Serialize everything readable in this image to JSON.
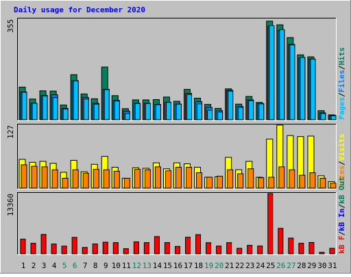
{
  "title": "Daily usage for December 2020",
  "colors": {
    "background": "#c0c0c0",
    "plot_bg": "#c0c0c0",
    "title": "#0000ff",
    "hits": "#00805c",
    "files": "#0080ff",
    "pages": "#00c0ff",
    "visits": "#ffff00",
    "sites": "#ff8000",
    "kbin": "#0000ff",
    "kbout": "#00805c",
    "kbf": "#ff0000",
    "weekday_label": "#000000",
    "weekend_label": "#00805c"
  },
  "chart_data": [
    {
      "type": "bar",
      "name": "hits-files-pages",
      "ymax_label": "355",
      "ylim": [
        0,
        355
      ],
      "legend": [
        {
          "label": "Pages",
          "color": "#00c0ff"
        },
        {
          "label": "Files",
          "color": "#0080ff"
        },
        {
          "label": "Hits",
          "color": "#00805c"
        }
      ],
      "categories": [
        "1",
        "2",
        "3",
        "4",
        "5",
        "6",
        "7",
        "8",
        "9",
        "10",
        "11",
        "12",
        "13",
        "14",
        "15",
        "16",
        "17",
        "18",
        "19",
        "20",
        "21",
        "22",
        "23",
        "24",
        "25",
        "26",
        "27",
        "28",
        "29",
        "30",
        "31"
      ],
      "series": [
        {
          "name": "Hits",
          "values": [
            115,
            73,
            102,
            101,
            52,
            159,
            91,
            74,
            186,
            85,
            39,
            70,
            70,
            71,
            80,
            65,
            107,
            76,
            54,
            40,
            109,
            55,
            82,
            61,
            348,
            335,
            290,
            229,
            222,
            32,
            17
          ]
        },
        {
          "name": "Files",
          "values": [
            98,
            58,
            86,
            88,
            40,
            138,
            79,
            58,
            107,
            68,
            30,
            58,
            58,
            54,
            62,
            55,
            93,
            64,
            43,
            32,
            104,
            47,
            70,
            57,
            330,
            315,
            266,
            217,
            214,
            24,
            15
          ]
        },
        {
          "name": "Pages",
          "values": [
            97,
            58,
            84,
            78,
            38,
            137,
            73,
            55,
            106,
            66,
            22,
            57,
            57,
            53,
            61,
            55,
            89,
            56,
            33,
            27,
            101,
            43,
            67,
            56,
            332,
            318,
            264,
            220,
            214,
            22,
            14
          ]
        }
      ]
    },
    {
      "type": "bar",
      "name": "visits-sites",
      "ymax_label": "127",
      "ylim": [
        0,
        127
      ],
      "legend": [
        {
          "label": "Sites",
          "color": "#ff8000"
        },
        {
          "label": "Visits",
          "color": "#ffff00"
        }
      ],
      "categories": [
        "1",
        "2",
        "3",
        "4",
        "5",
        "6",
        "7",
        "8",
        "9",
        "10",
        "11",
        "12",
        "13",
        "14",
        "15",
        "16",
        "17",
        "18",
        "19",
        "20",
        "21",
        "22",
        "23",
        "24",
        "25",
        "26",
        "27",
        "28",
        "29",
        "30",
        "31"
      ],
      "series": [
        {
          "name": "Visits",
          "values": [
            58,
            52,
            54,
            50,
            32,
            56,
            33,
            48,
            64,
            42,
            20,
            41,
            40,
            51,
            39,
            51,
            49,
            42,
            22,
            23,
            62,
            37,
            54,
            22,
            99,
            127,
            106,
            104,
            105,
            25,
            13
          ]
        },
        {
          "name": "Sites",
          "values": [
            47,
            44,
            43,
            37,
            20,
            37,
            30,
            38,
            37,
            34,
            20,
            38,
            37,
            43,
            35,
            42,
            42,
            31,
            22,
            24,
            37,
            29,
            39,
            21,
            22,
            43,
            37,
            26,
            31,
            20,
            10
          ]
        }
      ]
    },
    {
      "type": "bar",
      "name": "kbf-kbin-kbout",
      "ymax_label": "13360",
      "ylim": [
        0,
        13360
      ],
      "legend": [
        {
          "label": "kB F",
          "color": "#ff0000"
        },
        {
          "label": "kB In",
          "color": "#0000ff"
        },
        {
          "label": "kB Out",
          "color": "#00805c"
        }
      ],
      "categories": [
        "1",
        "2",
        "3",
        "4",
        "5",
        "6",
        "7",
        "8",
        "9",
        "10",
        "11",
        "12",
        "13",
        "14",
        "15",
        "16",
        "17",
        "18",
        "19",
        "20",
        "21",
        "22",
        "23",
        "24",
        "25",
        "26",
        "27",
        "28",
        "29",
        "30",
        "31"
      ],
      "weekend_days": [
        "5",
        "6",
        "12",
        "13",
        "19",
        "20",
        "26",
        "27"
      ],
      "series": [
        {
          "name": "kB F",
          "values": [
            3250,
            2330,
            4290,
            2170,
            1700,
            3640,
            1400,
            2180,
            2570,
            2480,
            1130,
            2640,
            2480,
            3820,
            2480,
            1630,
            3670,
            4250,
            2460,
            1710,
            2470,
            1210,
            1870,
            1720,
            13360,
            5640,
            3480,
            2330,
            2510,
            320,
            1210
          ]
        }
      ]
    }
  ]
}
